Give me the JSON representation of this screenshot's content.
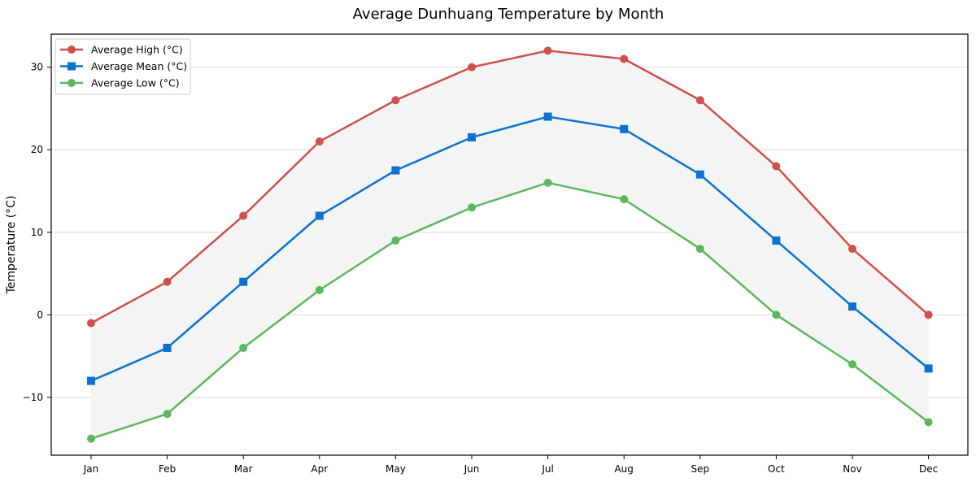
{
  "chart_data": {
    "type": "line",
    "title": "Average Dunhuang Temperature by Month",
    "xlabel": "",
    "ylabel": "Temperature (°C)",
    "categories": [
      "Jan",
      "Feb",
      "Mar",
      "Apr",
      "May",
      "Jun",
      "Jul",
      "Aug",
      "Sep",
      "Oct",
      "Nov",
      "Dec"
    ],
    "ylim": [
      -17,
      34
    ],
    "yticks": [
      -10,
      0,
      10,
      20,
      30
    ],
    "grid": "horizontal",
    "legend_position": "top-left",
    "fill_between": {
      "upper": "Average High (°C)",
      "lower": "Average Low (°C)",
      "color": "#f4f4f4"
    },
    "series": [
      {
        "name": "Average High (°C)",
        "color": "#d0504b",
        "marker": "circle",
        "values": [
          -1,
          4,
          12,
          21,
          26,
          30,
          32,
          31,
          26,
          18,
          8,
          0
        ]
      },
      {
        "name": "Average Mean (°C)",
        "color": "#0b72d2",
        "marker": "square",
        "values": [
          -8,
          -4,
          4,
          12,
          17.5,
          21.5,
          24,
          22.5,
          17,
          9,
          1,
          -6.5
        ]
      },
      {
        "name": "Average Low (°C)",
        "color": "#5cb85c",
        "marker": "circle",
        "values": [
          -15,
          -12,
          -4,
          3,
          9,
          13,
          16,
          14,
          8,
          0,
          -6,
          -13
        ]
      }
    ]
  }
}
